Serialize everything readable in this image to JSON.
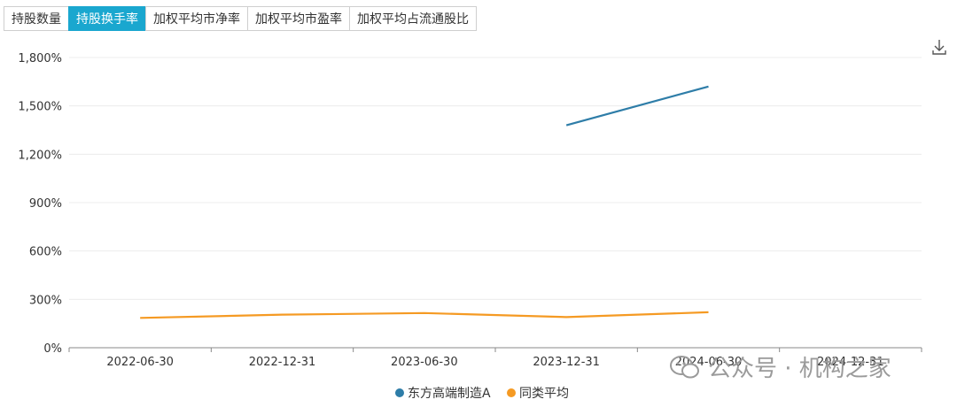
{
  "tabs": [
    {
      "label": "持股数量",
      "active": false
    },
    {
      "label": "持股换手率",
      "active": true
    },
    {
      "label": "加权平均市净率",
      "active": false
    },
    {
      "label": "加权平均市盈率",
      "active": false
    },
    {
      "label": "加权平均占流通股比",
      "active": false
    }
  ],
  "download_icon": "download-icon",
  "watermark": {
    "text": "公众号 · 机构之家",
    "icon": "wechat-icon"
  },
  "colors": {
    "series1": "#2e7da8",
    "series2": "#f59a23",
    "active_tab": "#1aa7cf"
  },
  "chart_data": {
    "type": "line",
    "x": [
      "2022-06-30",
      "2022-12-31",
      "2023-06-30",
      "2023-12-31",
      "2024-06-30",
      "2024-12-31"
    ],
    "y_ticks": [
      "0%",
      "300%",
      "600%",
      "900%",
      "1,200%",
      "1,500%",
      "1,800%"
    ],
    "ylim": [
      0,
      1800
    ],
    "grid": true,
    "legend_position": "bottom-center",
    "series": [
      {
        "name": "东方高端制造A",
        "color": "#2e7da8",
        "values": [
          null,
          null,
          null,
          1380,
          1620,
          null
        ]
      },
      {
        "name": "同类平均",
        "color": "#f59a23",
        "values": [
          185,
          205,
          215,
          190,
          220,
          null
        ]
      }
    ]
  }
}
